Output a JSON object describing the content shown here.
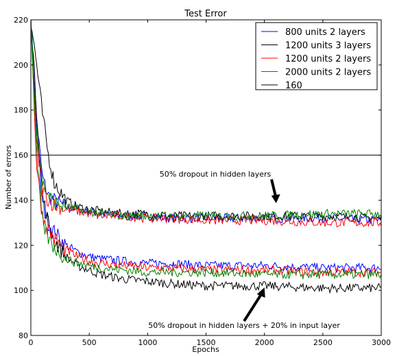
{
  "chart_data": {
    "type": "line",
    "title": "Test Error",
    "xlabel": "Epochs",
    "ylabel": "Number of errors",
    "xlim": [
      0,
      3000
    ],
    "ylim": [
      80,
      220
    ],
    "x_ticks": [
      "0",
      "500",
      "1000",
      "1500",
      "2000",
      "2500",
      "3000"
    ],
    "y_ticks": [
      "80",
      "100",
      "120",
      "140",
      "160",
      "180",
      "200",
      "220"
    ],
    "legend_position": "top-right",
    "reference_line": {
      "name": "160",
      "y": 160,
      "color": "#000000"
    },
    "series": [
      {
        "name": "800 units 2 layers",
        "color": "#0000ff",
        "groups": [
          {
            "x": [
              0,
              50,
              100,
              150,
              200,
              300,
              400,
              500,
              600,
              800,
              1000,
              1200,
              1500,
              2000,
              2500,
              3000
            ],
            "y": [
              220,
              175,
              150,
              142,
              140,
              137,
              136,
              135,
              134,
              133,
              133,
              132,
              132,
              132,
              132,
              131
            ]
          },
          {
            "x": [
              0,
              50,
              100,
              150,
              200,
              300,
              400,
              500,
              600,
              800,
              1000,
              1200,
              1500,
              2000,
              2500,
              3000
            ],
            "y": [
              220,
              170,
              138,
              130,
              126,
              120,
              117,
              115,
              114,
              113,
              112,
              112,
              111,
              111,
              110,
              110
            ]
          }
        ]
      },
      {
        "name": "1200 units 3 layers",
        "color": "#000000",
        "groups": [
          {
            "x": [
              0,
              50,
              100,
              150,
              200,
              300,
              400,
              500,
              600,
              800,
              1000,
              1200,
              1500,
              2000,
              2500,
              3000
            ],
            "y": [
              220,
              200,
              178,
              160,
              148,
              140,
              137,
              136,
              135,
              134,
              134,
              133,
              133,
              133,
              133,
              132
            ]
          },
          {
            "x": [
              0,
              50,
              100,
              150,
              200,
              300,
              400,
              500,
              600,
              800,
              1000,
              1200,
              1500,
              2000,
              2500,
              3000
            ],
            "y": [
              220,
              180,
              142,
              130,
              122,
              115,
              111,
              109,
              107,
              105,
              104,
              103,
              102,
              102,
              101,
              101
            ]
          }
        ]
      },
      {
        "name": "1200 units 2 layers",
        "color": "#ff0000",
        "groups": [
          {
            "x": [
              0,
              50,
              100,
              150,
              200,
              300,
              400,
              500,
              600,
              800,
              1000,
              1200,
              1500,
              2000,
              2500,
              3000
            ],
            "y": [
              220,
              165,
              145,
              140,
              138,
              136,
              135,
              134,
              133,
              133,
              132,
              132,
              131,
              131,
              130,
              130
            ]
          },
          {
            "x": [
              0,
              50,
              100,
              150,
              200,
              300,
              400,
              500,
              600,
              800,
              1000,
              1200,
              1500,
              2000,
              2500,
              3000
            ],
            "y": [
              220,
              155,
              133,
              127,
              123,
              118,
              115,
              113,
              112,
              111,
              110,
              110,
              109,
              109,
              108,
              108
            ]
          }
        ]
      },
      {
        "name": "2000 units 2 layers",
        "color": "#008000",
        "groups": [
          {
            "x": [
              0,
              50,
              100,
              150,
              200,
              300,
              400,
              500,
              600,
              800,
              1000,
              1200,
              1500,
              2000,
              2500,
              3000
            ],
            "y": [
              220,
              170,
              148,
              142,
              139,
              137,
              136,
              135,
              134,
              133,
              133,
              133,
              133,
              133,
              134,
              134
            ]
          },
          {
            "x": [
              0,
              50,
              100,
              150,
              200,
              300,
              400,
              500,
              600,
              800,
              1000,
              1200,
              1500,
              2000,
              2500,
              3000
            ],
            "y": [
              220,
              160,
              130,
              123,
              119,
              114,
              112,
              111,
              110,
              109,
              108,
              108,
              108,
              107,
              107,
              107
            ]
          }
        ]
      }
    ],
    "annotations": [
      {
        "text": "50% dropout in hidden layers",
        "arrow_to": {
          "x": 2100,
          "y": 139
        }
      },
      {
        "text": "50% dropout in hidden layers + 20% in input layer",
        "arrow_to": {
          "x": 2000,
          "y": 101
        }
      }
    ]
  }
}
